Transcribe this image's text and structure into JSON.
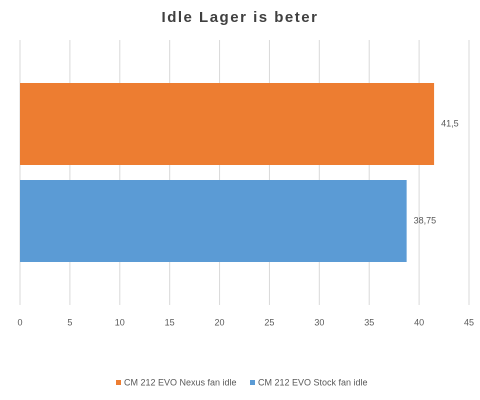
{
  "chart_data": {
    "type": "bar",
    "orientation": "horizontal",
    "title": "Idle Lager is beter",
    "series": [
      {
        "name": "CM 212 EVO Nexus fan idle",
        "color": "#ed7d31",
        "values": [
          41.5
        ],
        "value_labels": [
          "41,5"
        ]
      },
      {
        "name": "CM 212 EVO Stock fan idle",
        "color": "#5b9bd5",
        "values": [
          38.75
        ],
        "value_labels": [
          "38,75"
        ]
      }
    ],
    "xlim": [
      0,
      45
    ],
    "xticks": [
      0,
      5,
      10,
      15,
      20,
      25,
      30,
      35,
      40,
      45
    ],
    "grid": true,
    "legend": "bottom"
  }
}
